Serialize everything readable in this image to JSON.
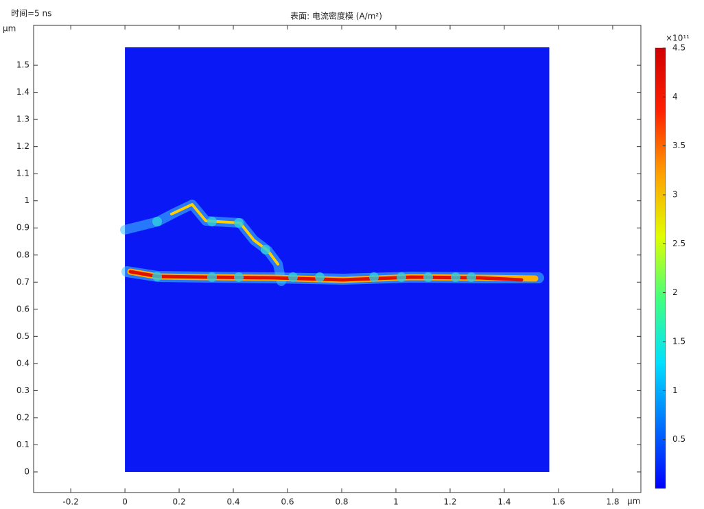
{
  "chart_data": {
    "type": "surface",
    "time_label": "时间=5 ns",
    "title": "表面: 电流密度模 (A/m²)",
    "x_unit": "μm",
    "y_unit": "μm",
    "xlim": [
      -0.337,
      1.904
    ],
    "ylim": [
      -0.076,
      1.647
    ],
    "xticks": [
      -0.2,
      0,
      0.2,
      0.4,
      0.6,
      0.8,
      1,
      1.2,
      1.4,
      1.6,
      1.8
    ],
    "yticks": [
      0,
      0.1,
      0.2,
      0.3,
      0.4,
      0.5,
      0.6,
      0.7,
      0.8,
      0.9,
      1,
      1.1,
      1.2,
      1.3,
      1.4,
      1.5
    ],
    "domain": {
      "x": [
        0,
        1.566
      ],
      "y": [
        0,
        1.566
      ],
      "color": "#0a18f5"
    },
    "colorbar": {
      "multiplier": "×10¹¹",
      "lim": [
        0,
        4.5
      ],
      "ticks": [
        0.5,
        1,
        1.5,
        2,
        2.5,
        3,
        3.5,
        4,
        4.5
      ],
      "colors": [
        "#0000ff",
        "#0070ff",
        "#00e0ff",
        "#40ff80",
        "#e0ff00",
        "#ffa000",
        "#ff2000",
        "#d00000"
      ]
    }
  }
}
